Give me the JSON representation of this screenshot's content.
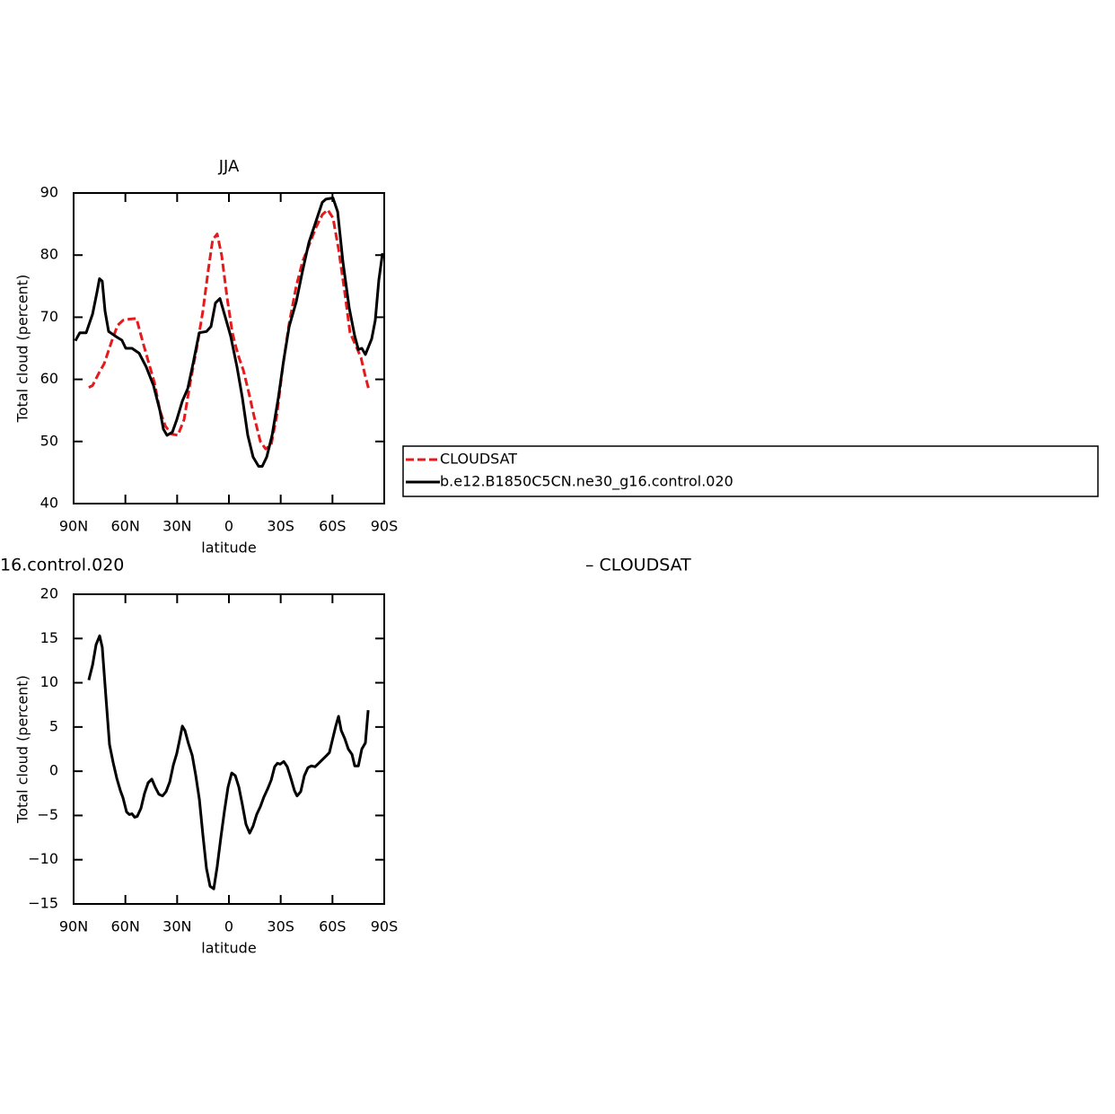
{
  "chart_data": [
    {
      "type": "line",
      "title": "JJA",
      "x_label": "latitude",
      "y_label": "Total cloud (percent)",
      "xlim": [
        90,
        -90
      ],
      "xticks": [
        {
          "value": 90,
          "label": "90N"
        },
        {
          "value": 60,
          "label": "60N"
        },
        {
          "value": 30,
          "label": "30N"
        },
        0,
        {
          "value": -30,
          "label": "30S"
        },
        {
          "value": -60,
          "label": "60S"
        },
        {
          "value": -90,
          "label": "90S"
        }
      ],
      "ylim": [
        40,
        90
      ],
      "yticks": [
        40,
        50,
        60,
        70,
        80,
        90
      ],
      "legend": "right",
      "series": [
        {
          "name": "CLOUDSAT",
          "color": "#e41a1c",
          "dash": true,
          "x": [
            81.2,
            79,
            75.4,
            72.3,
            68.1,
            64.5,
            61.4,
            57.7,
            53.6,
            49.9,
            46.3,
            43.2,
            40,
            36.9,
            33.3,
            29.6,
            26,
            22.4,
            18.7,
            15.1,
            12,
            9.4,
            6.8,
            4.2,
            1,
            -2,
            -5.2,
            -8.3,
            -11.4,
            -14.6,
            -18.2,
            -21.3,
            -24.5,
            -27.6,
            -31.2,
            -34.9,
            -39,
            -42.7,
            -46.3,
            -50.5,
            -54.1,
            -57.2,
            -60.3,
            -63.5,
            -67.1,
            -70.2,
            -73.4,
            -76.5,
            -78.6,
            -81.2
          ],
          "values": [
            58.7,
            59,
            61,
            62.5,
            66,
            68.7,
            69.5,
            69.7,
            69.8,
            66,
            62.5,
            59.5,
            55,
            52.5,
            51.2,
            51,
            53.5,
            59.5,
            65,
            71,
            77.5,
            82.5,
            83.4,
            80,
            73,
            67.5,
            64,
            61.5,
            58,
            54,
            50,
            48.8,
            49.5,
            54,
            62,
            69,
            75,
            79,
            81.5,
            84.5,
            86.5,
            87.3,
            86,
            81,
            74,
            67.5,
            65.5,
            63.5,
            61,
            58.2
          ]
        },
        {
          "name": "b.e12.B1850C5CN.ne30_g16.control.020",
          "color": "#000000",
          "dash": false,
          "x": [
            89,
            86.4,
            82.7,
            79,
            76.5,
            75,
            73.4,
            71.8,
            69.7,
            65,
            62,
            59.8,
            56.2,
            52,
            47.9,
            43.7,
            40,
            38,
            35.9,
            32.8,
            30.2,
            27,
            23.9,
            20.8,
            17.2,
            13,
            10.4,
            7.8,
            5.2,
            2.6,
            -1,
            -4.7,
            -7.8,
            -10.9,
            -14,
            -17.2,
            -19.3,
            -21.9,
            -25,
            -28.6,
            -31.7,
            -34.9,
            -39,
            -42.7,
            -46.3,
            -50.5,
            -54.1,
            -56.2,
            -60.3,
            -63,
            -66,
            -69.7,
            -72.9,
            -75,
            -77,
            -79.1,
            -82.7,
            -84.8,
            -86.9,
            -89
          ],
          "values": [
            66.2,
            67.5,
            67.5,
            70.5,
            74,
            76.2,
            75.8,
            71,
            67.7,
            66.8,
            66.3,
            65,
            65,
            64.2,
            62,
            59,
            55,
            52,
            51,
            51.5,
            53.5,
            56.5,
            58.5,
            62.5,
            67.5,
            67.7,
            68.5,
            72.3,
            73,
            70.5,
            67,
            62,
            57,
            51,
            47.5,
            46,
            46,
            47.5,
            51,
            57,
            63,
            68.5,
            72.5,
            77.5,
            82,
            85.5,
            88.5,
            89,
            89.2,
            87,
            79,
            71.5,
            67,
            64.8,
            65,
            64,
            66.5,
            69.5,
            76,
            80.3
          ]
        }
      ]
    },
    {
      "type": "line",
      "title_fragments": [
        "16.control.020",
        "– CLOUDSAT"
      ],
      "x_label": "latitude",
      "y_label": "Total cloud (percent)",
      "xlim": [
        90,
        -90
      ],
      "xticks": [
        {
          "value": 90,
          "label": "90N"
        },
        {
          "value": 60,
          "label": "60N"
        },
        {
          "value": 30,
          "label": "30N"
        },
        0,
        {
          "value": -30,
          "label": "30S"
        },
        {
          "value": -60,
          "label": "60S"
        },
        {
          "value": -90,
          "label": "90S"
        }
      ],
      "ylim": [
        -15,
        20
      ],
      "yticks": [
        {
          "value": -15,
          "label": "−15"
        },
        {
          "value": -10,
          "label": "−10"
        },
        {
          "value": -5,
          "label": "−5"
        },
        0,
        5,
        10,
        15,
        20
      ],
      "series": [
        {
          "color": "#000000",
          "dash": false,
          "x": [
            81.2,
            79,
            77,
            74.9,
            73.4,
            71.3,
            69.2,
            67.1,
            65,
            62.9,
            61.4,
            59.3,
            57.7,
            56.2,
            54.6,
            53.1,
            51,
            48.9,
            46.8,
            44.7,
            42.7,
            40.6,
            38.5,
            36.4,
            34.3,
            32.2,
            30.2,
            28.6,
            27,
            25.5,
            23.4,
            21.3,
            19.2,
            17.1,
            15.1,
            13,
            10.9,
            8.8,
            6.8,
            4.7,
            2.6,
            0.5,
            -1.6,
            -3.7,
            -5.8,
            -7.8,
            -9.9,
            -12,
            -14,
            -16.1,
            -18.2,
            -20.3,
            -22.4,
            -24.5,
            -26.5,
            -28.1,
            -29.7,
            -31.8,
            -33.8,
            -35.9,
            -38,
            -39.5,
            -41.6,
            -43.7,
            -45.8,
            -47.8,
            -49.9,
            -52,
            -54.1,
            -56.2,
            -58.2,
            -60.3,
            -61.9,
            -63.5,
            -65.1,
            -67.1,
            -69.2,
            -71.3,
            -72.9,
            -75,
            -77,
            -79.1,
            -80.7
          ],
          "values": [
            10.3,
            12,
            14.3,
            15.3,
            14,
            8.5,
            3,
            1,
            -0.8,
            -2.2,
            -3,
            -4.6,
            -4.9,
            -4.8,
            -5.2,
            -5.1,
            -4.2,
            -2.5,
            -1.3,
            -0.9,
            -1.8,
            -2.6,
            -2.8,
            -2.3,
            -1.2,
            0.7,
            2,
            3.5,
            5.1,
            4.6,
            3.1,
            1.8,
            -0.5,
            -3.2,
            -7.2,
            -11,
            -13,
            -13.3,
            -10.8,
            -7.5,
            -4.5,
            -1.8,
            -0.2,
            -0.5,
            -1.8,
            -3.8,
            -6,
            -7,
            -6.2,
            -4.9,
            -4,
            -2.9,
            -2,
            -1,
            0.5,
            0.9,
            0.8,
            1.1,
            0.5,
            -0.8,
            -2.2,
            -2.8,
            -2.3,
            -0.5,
            0.4,
            0.6,
            0.5,
            0.9,
            1.3,
            1.7,
            2.1,
            3.8,
            5.1,
            6.2,
            4.6,
            3.7,
            2.5,
            1.9,
            0.6,
            0.6,
            2.5,
            3.2,
            6.9
          ]
        }
      ]
    }
  ]
}
